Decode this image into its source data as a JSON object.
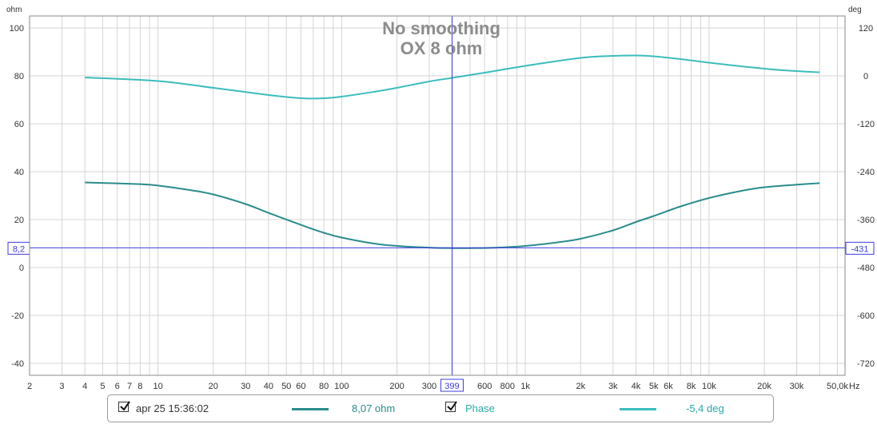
{
  "chart_data": {
    "type": "line",
    "title": "No smoothing",
    "subtitle": "OX 8 ohm",
    "x_unit_label": "Hz",
    "left_unit_label": "ohm",
    "right_unit_label": "deg",
    "xscale": "log",
    "xlim": [
      2,
      55000
    ],
    "ylim": [
      -45,
      105
    ],
    "y2lim": [
      -750,
      150
    ],
    "grid": true,
    "x_tick_values": [
      2,
      3,
      4,
      5,
      6,
      7,
      8,
      10,
      20,
      30,
      40,
      50,
      60,
      80,
      100,
      200,
      300,
      600,
      800,
      1000,
      2000,
      3000,
      4000,
      5000,
      6000,
      8000,
      10000,
      20000,
      30000,
      50000
    ],
    "x_tick_labels": [
      "2",
      "3",
      "4",
      "5",
      "6",
      "7",
      "8",
      "10",
      "20",
      "30",
      "40",
      "50",
      "60",
      "80",
      "100",
      "200",
      "300",
      "600",
      "800",
      "1k",
      "2k",
      "3k",
      "4k",
      "5k",
      "6k",
      "8k",
      "10k",
      "20k",
      "30k",
      "50,0k"
    ],
    "y_tick_values": [
      100,
      80,
      60,
      40,
      20,
      0,
      -20,
      -40
    ],
    "y_tick_labels": [
      "100",
      "80",
      "60",
      "40",
      "20",
      "0",
      "-20",
      "-40"
    ],
    "y2_tick_values": [
      120,
      0,
      -120,
      -240,
      -360,
      -480,
      -600,
      -720
    ],
    "y2_tick_labels": [
      "120",
      "0",
      "-120",
      "-240",
      "-360",
      "-480",
      "-600",
      "-720"
    ],
    "cursor": {
      "x": 399,
      "x_label": "399",
      "y": 8.2,
      "y_label": "8,2",
      "y2_label": "-431",
      "color": "#3c3cdc"
    },
    "series": [
      {
        "name": "apr 25 15:36:02",
        "axis": "left",
        "color": "#2a8c8c",
        "x": [
          4,
          8,
          10,
          15,
          20,
          30,
          40,
          60,
          80,
          100,
          150,
          200,
          300,
          400,
          500,
          700,
          1000,
          1500,
          2000,
          3000,
          4000,
          5000,
          7000,
          10000,
          15000,
          20000,
          30000,
          40000
        ],
        "y": [
          35.5,
          34.8,
          34.2,
          32.3,
          30.5,
          26.5,
          22.8,
          17.8,
          14.5,
          12.5,
          10.0,
          9.0,
          8.3,
          8.1,
          8.1,
          8.3,
          9.0,
          10.5,
          12.0,
          15.5,
          19.0,
          21.5,
          25.5,
          29.0,
          32.0,
          33.5,
          34.6,
          35.2
        ]
      },
      {
        "name": "Phase",
        "axis": "right",
        "color": "#3cbcbc",
        "x": [
          4,
          10,
          20,
          40,
          60,
          80,
          100,
          150,
          200,
          300,
          400,
          600,
          1000,
          2000,
          3000,
          4000,
          5000,
          7000,
          10000,
          20000,
          30000,
          40000
        ],
        "y": [
          -4,
          -13,
          -30,
          -48,
          -56,
          -56,
          -52,
          -40,
          -30,
          -14,
          -5,
          8,
          25,
          45,
          50,
          51,
          49,
          42,
          33,
          18,
          12,
          9
        ]
      }
    ]
  },
  "legend": {
    "measurement": {
      "label": "apr 25 15:36:02",
      "value": "8,07 ohm",
      "color": "#2a8c8c",
      "label_color": "#333333",
      "value_color": "#2a8c8c"
    },
    "phase": {
      "label": "Phase",
      "value": "-5,4 deg",
      "color": "#3cbcbc",
      "label_color": "#2aa8a8",
      "value_color": "#2aa8a8"
    }
  }
}
